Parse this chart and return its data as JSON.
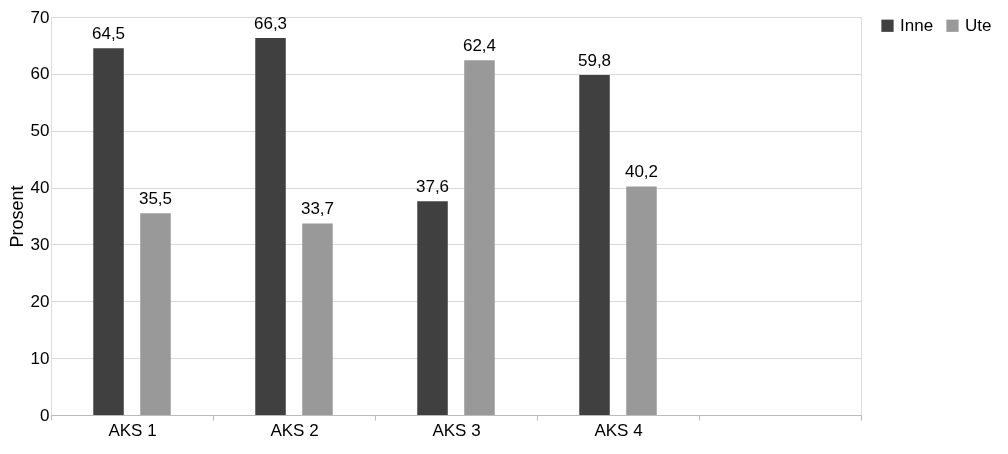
{
  "chart_data": {
    "type": "bar",
    "ylabel": "Prosent",
    "categories": [
      "AKS 1",
      "AKS 2",
      "AKS 3",
      "AKS 4",
      null
    ],
    "series": [
      {
        "name": "Inne",
        "color": "#404040",
        "values": [
          64.5,
          66.3,
          37.6,
          59.8,
          null
        ],
        "value_labels": [
          "64,5",
          "66,3",
          "37,6",
          "59,8",
          null
        ]
      },
      {
        "name": "Ute",
        "color": "#999999",
        "values": [
          35.5,
          33.7,
          62.4,
          40.2,
          null
        ],
        "value_labels": [
          "35,5",
          "33,7",
          "62,4",
          "40,2",
          null
        ]
      }
    ],
    "ylim": [
      0,
      70
    ],
    "yticks": [
      0,
      10,
      20,
      30,
      40,
      50,
      60,
      70
    ],
    "grid": "y",
    "legend": "right"
  }
}
